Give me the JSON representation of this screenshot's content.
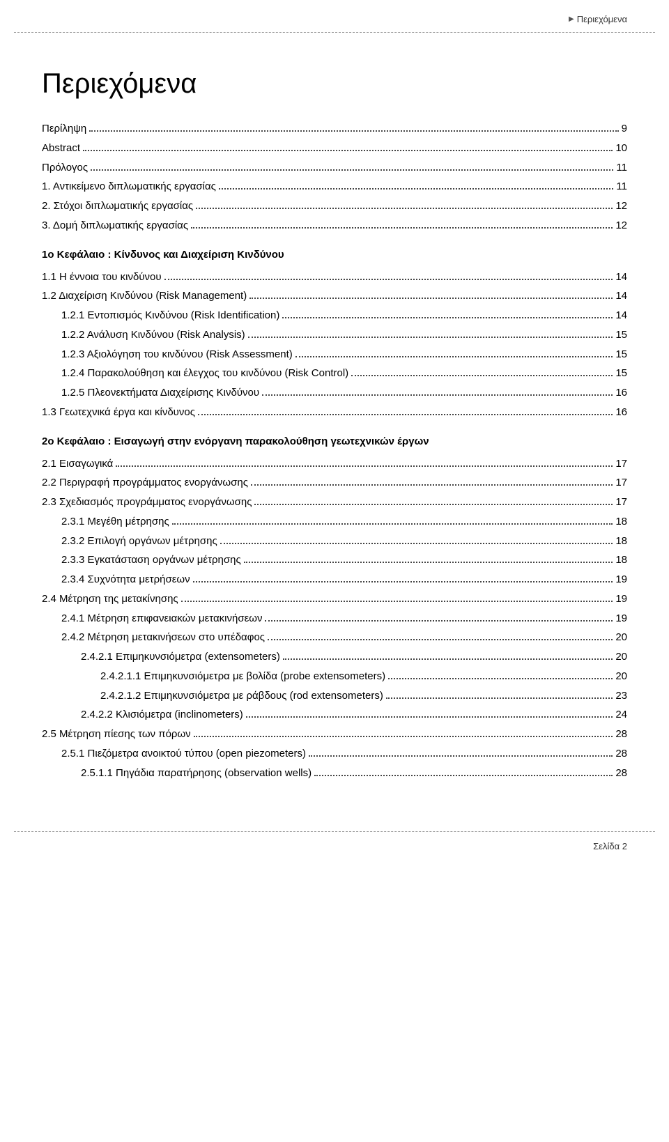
{
  "header": {
    "label": "Περιεχόμενα"
  },
  "title": "Περιεχόμενα",
  "entries": [
    {
      "type": "item",
      "indent": 0,
      "label": "Περίληψη",
      "page": "9"
    },
    {
      "type": "item",
      "indent": 0,
      "label": "Abstract",
      "page": "10"
    },
    {
      "type": "item",
      "indent": 0,
      "label": "Πρόλογος",
      "page": "11"
    },
    {
      "type": "item",
      "indent": 0,
      "label": "1.  Αντικείμενο διπλωματικής εργασίας",
      "page": "11"
    },
    {
      "type": "item",
      "indent": 0,
      "label": "2.  Στόχοι διπλωματικής εργασίας",
      "page": "12"
    },
    {
      "type": "item",
      "indent": 0,
      "label": "3.  Δομή διπλωματικής εργασίας",
      "page": "12"
    },
    {
      "type": "heading",
      "indent": 0,
      "label": "1ο Κεφάλαιο :  Κίνδυνος και Διαχείριση Κινδύνου"
    },
    {
      "type": "item",
      "indent": 0,
      "label": "1.1  Η έννοια του κινδύνου",
      "page": "14"
    },
    {
      "type": "item",
      "indent": 0,
      "label": "1.2  Διαχείριση Κινδύνου (Risk Management)",
      "page": "14"
    },
    {
      "type": "item",
      "indent": 1,
      "label": "1.2.1  Εντοπισμός Κινδύνου (Risk Identification)",
      "page": "14"
    },
    {
      "type": "item",
      "indent": 1,
      "label": "1.2.2  Ανάλυση Κινδύνου (Risk Analysis)",
      "page": "15"
    },
    {
      "type": "item",
      "indent": 1,
      "label": "1.2.3  Αξιολόγηση του κινδύνου (Risk Assessment)",
      "page": "15"
    },
    {
      "type": "item",
      "indent": 1,
      "label": "1.2.4  Παρακολούθηση και έλεγχος του κινδύνου (Risk Control)",
      "page": "15"
    },
    {
      "type": "item",
      "indent": 1,
      "label": "1.2.5  Πλεονεκτήματα Διαχείρισης Κινδύνου",
      "page": "16"
    },
    {
      "type": "item",
      "indent": 0,
      "label": "1.3  Γεωτεχνικά έργα και κίνδυνος",
      "page": "16"
    },
    {
      "type": "heading",
      "indent": 0,
      "label": "2ο Κεφάλαιο :  Εισαγωγή στην ενόργανη παρακολούθηση γεωτεχνικών έργων"
    },
    {
      "type": "item",
      "indent": 0,
      "label": "2.1  Εισαγωγικά",
      "page": "17"
    },
    {
      "type": "item",
      "indent": 0,
      "label": "2.2  Περιγραφή προγράμματος ενοργάνωσης",
      "page": "17"
    },
    {
      "type": "item",
      "indent": 0,
      "label": "2.3  Σχεδιασμός προγράμματος ενοργάνωσης",
      "page": "17"
    },
    {
      "type": "item",
      "indent": 1,
      "label": "2.3.1  Μεγέθη μέτρησης",
      "page": "18"
    },
    {
      "type": "item",
      "indent": 1,
      "label": "2.3.2  Επιλογή οργάνων μέτρησης",
      "page": "18"
    },
    {
      "type": "item",
      "indent": 1,
      "label": "2.3.3  Εγκατάσταση οργάνων μέτρησης",
      "page": "18"
    },
    {
      "type": "item",
      "indent": 1,
      "label": "2.3.4  Συχνότητα μετρήσεων",
      "page": "19"
    },
    {
      "type": "item",
      "indent": 0,
      "label": "2.4  Μέτρηση της μετακίνησης",
      "page": "19"
    },
    {
      "type": "item",
      "indent": 1,
      "label": "2.4.1  Μέτρηση επιφανειακών μετακινήσεων",
      "page": "19"
    },
    {
      "type": "item",
      "indent": 1,
      "label": "2.4.2   Μέτρηση μετακινήσεων στο υπέδαφος",
      "page": "20"
    },
    {
      "type": "item",
      "indent": 2,
      "label": "2.4.2.1  Επιμηκυνσιόμετρα (extensometers)",
      "page": "20"
    },
    {
      "type": "item",
      "indent": 3,
      "label": "2.4.2.1.1    Επιμηκυνσιόμετρα με βολίδα (probe extensometers)",
      "page": "20"
    },
    {
      "type": "item",
      "indent": 3,
      "label": "2.4.2.1.2    Επιμηκυνσιόμετρα με ράβδους (rod extensometers)",
      "page": "23"
    },
    {
      "type": "item",
      "indent": 2,
      "label": "2.4.2.2  Κλισιόμετρα (inclinometers)",
      "page": "24"
    },
    {
      "type": "item",
      "indent": 0,
      "label": "2.5  Μέτρηση πίεσης των πόρων",
      "page": "28"
    },
    {
      "type": "item",
      "indent": 1,
      "label": "2.5.1  Πιεζόμετρα ανοικτού τύπου (open piezometers)",
      "page": "28"
    },
    {
      "type": "item",
      "indent": 2,
      "label": "2.5.1.1  Πηγάδια παρατήρησης (observation wells)",
      "page": "28"
    }
  ],
  "footer": {
    "label": "Σελίδα 2"
  }
}
